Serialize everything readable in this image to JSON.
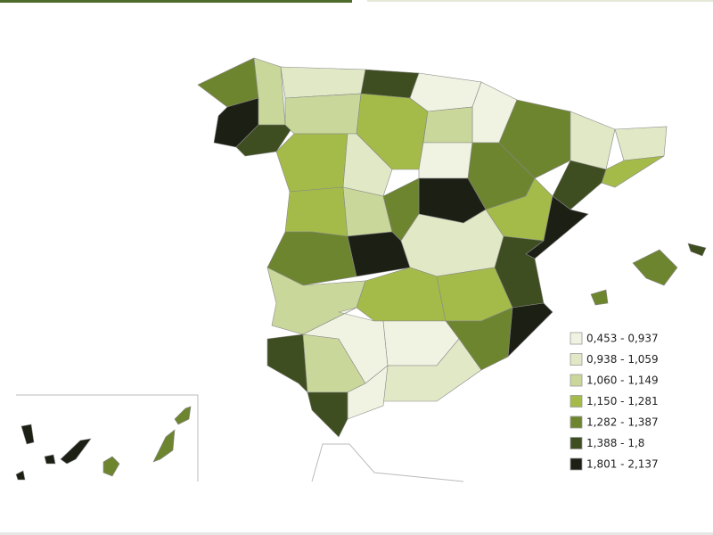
{
  "legend": {
    "items": [
      {
        "label": "0,453 - 0,937",
        "color": "#f1f3e2"
      },
      {
        "label": "0,938 - 1,059",
        "color": "#e1e8c6"
      },
      {
        "label": "1,060 - 1,149",
        "color": "#c9d89a"
      },
      {
        "label": "1,150 - 1,281",
        "color": "#a4bb4a"
      },
      {
        "label": "1,282 - 1,387",
        "color": "#6e8530"
      },
      {
        "label": "1,388 - 1,8",
        "color": "#3f4e20"
      },
      {
        "label": "1,801 - 2,137",
        "color": "#1c1f14"
      }
    ]
  }
}
